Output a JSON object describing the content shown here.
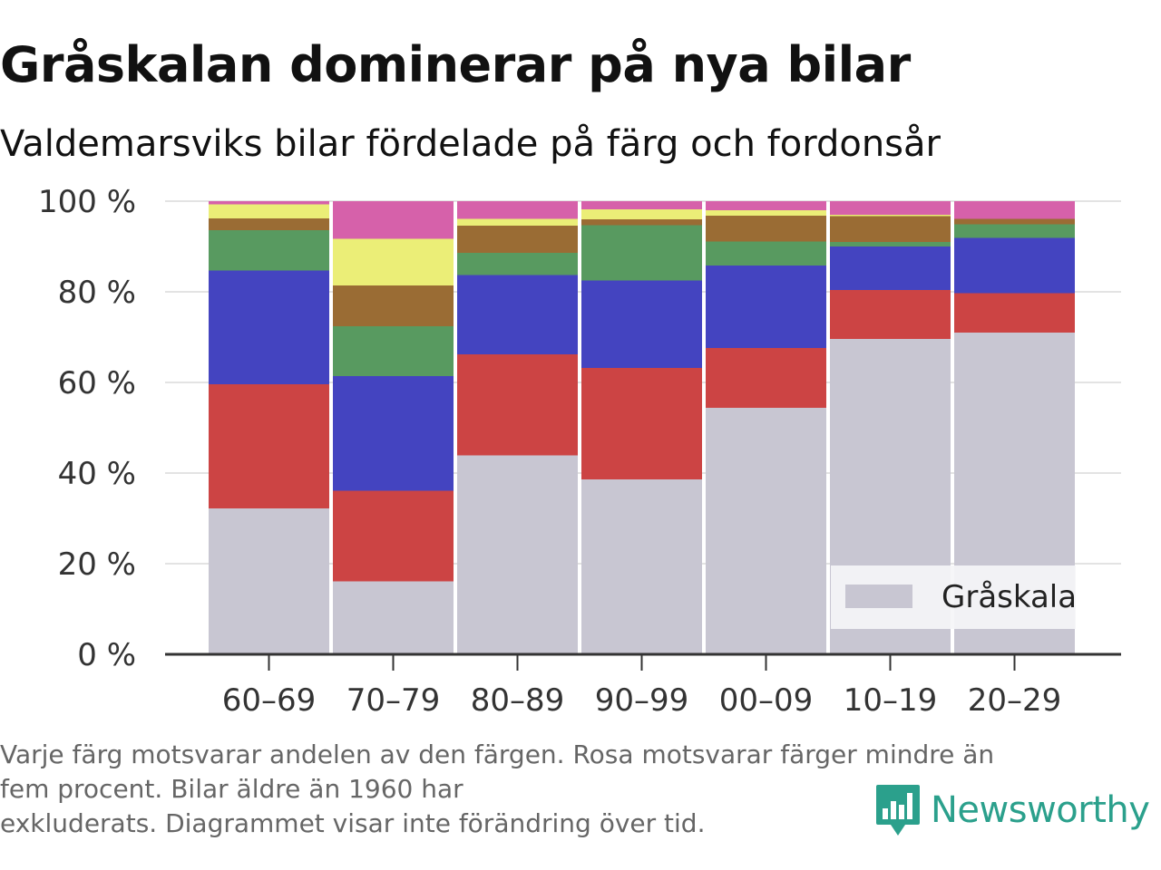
{
  "header": {
    "title": "Gråskalan dominerar på nya bilar",
    "subtitle": "Valdemarsviks bilar fördelade på färg och fordonsår"
  },
  "footer": {
    "note_line1": "Varje färg motsvarar andelen av den färgen. Rosa motsvarar färger mindre än",
    "note_line2": "fem procent. Bilar äldre än 1960 har",
    "note_line3": "exkluderats. Diagrammet visar inte förändring över tid.",
    "brand": "Newsworthy",
    "brand_color": "#2ba08c",
    "brand_icon": "bar-chart-speech-bubble-icon"
  },
  "chart_data": {
    "type": "bar",
    "stacked": true,
    "categories": [
      "60–69",
      "70–79",
      "80–89",
      "90–99",
      "00–09",
      "10–19",
      "20–29"
    ],
    "y_ticks": [
      0,
      20,
      40,
      60,
      80,
      100
    ],
    "y_tick_labels": [
      "0 %",
      "20 %",
      "40 %",
      "60 %",
      "80 %",
      "100 %"
    ],
    "ylim": [
      0,
      100
    ],
    "grid": true,
    "legend_position": "bottom-right",
    "series": [
      {
        "name": "Gråskala",
        "color": "#c8c6d2",
        "values": [
          32.2,
          16.1,
          43.9,
          38.6,
          54.4,
          69.6,
          71.0
        ]
      },
      {
        "color": "#cc4444",
        "values": [
          27.4,
          20.0,
          22.3,
          24.6,
          13.2,
          10.8,
          8.7
        ]
      },
      {
        "color": "#4444c0",
        "values": [
          25.1,
          25.3,
          17.5,
          19.3,
          18.2,
          9.6,
          12.2
        ]
      },
      {
        "color": "#589a60",
        "values": [
          8.9,
          11.0,
          4.9,
          12.2,
          5.3,
          1.0,
          3.0
        ]
      },
      {
        "color": "#9a6c34",
        "values": [
          2.6,
          9.0,
          6.0,
          1.3,
          5.7,
          5.7,
          1.2
        ]
      },
      {
        "color": "#ebee77",
        "values": [
          3.1,
          10.3,
          1.5,
          2.2,
          1.2,
          0.3,
          0.0
        ]
      },
      {
        "color": "#d661aa",
        "values": [
          0.7,
          8.3,
          3.9,
          1.8,
          2.0,
          3.0,
          3.9
        ]
      }
    ]
  }
}
